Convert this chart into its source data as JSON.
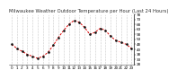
{
  "title": "Milwaukee Weather Outdoor Temperature per Hour (Last 24 Hours)",
  "hours": [
    0,
    1,
    2,
    3,
    4,
    5,
    6,
    7,
    8,
    9,
    10,
    11,
    12,
    13,
    14,
    15,
    16,
    17,
    18,
    19,
    20,
    21,
    22,
    23
  ],
  "temps": [
    48,
    44,
    41,
    38,
    36,
    34,
    36,
    40,
    47,
    55,
    62,
    68,
    72,
    70,
    65,
    58,
    60,
    64,
    62,
    56,
    52,
    50,
    48,
    44
  ],
  "line_color": "#dd0000",
  "marker_color": "#111111",
  "bg_color": "#ffffff",
  "grid_color": "#999999",
  "ylim_min": 28,
  "ylim_max": 78,
  "ytick_step": 5,
  "title_fontsize": 3.8,
  "tick_fontsize": 3.0
}
